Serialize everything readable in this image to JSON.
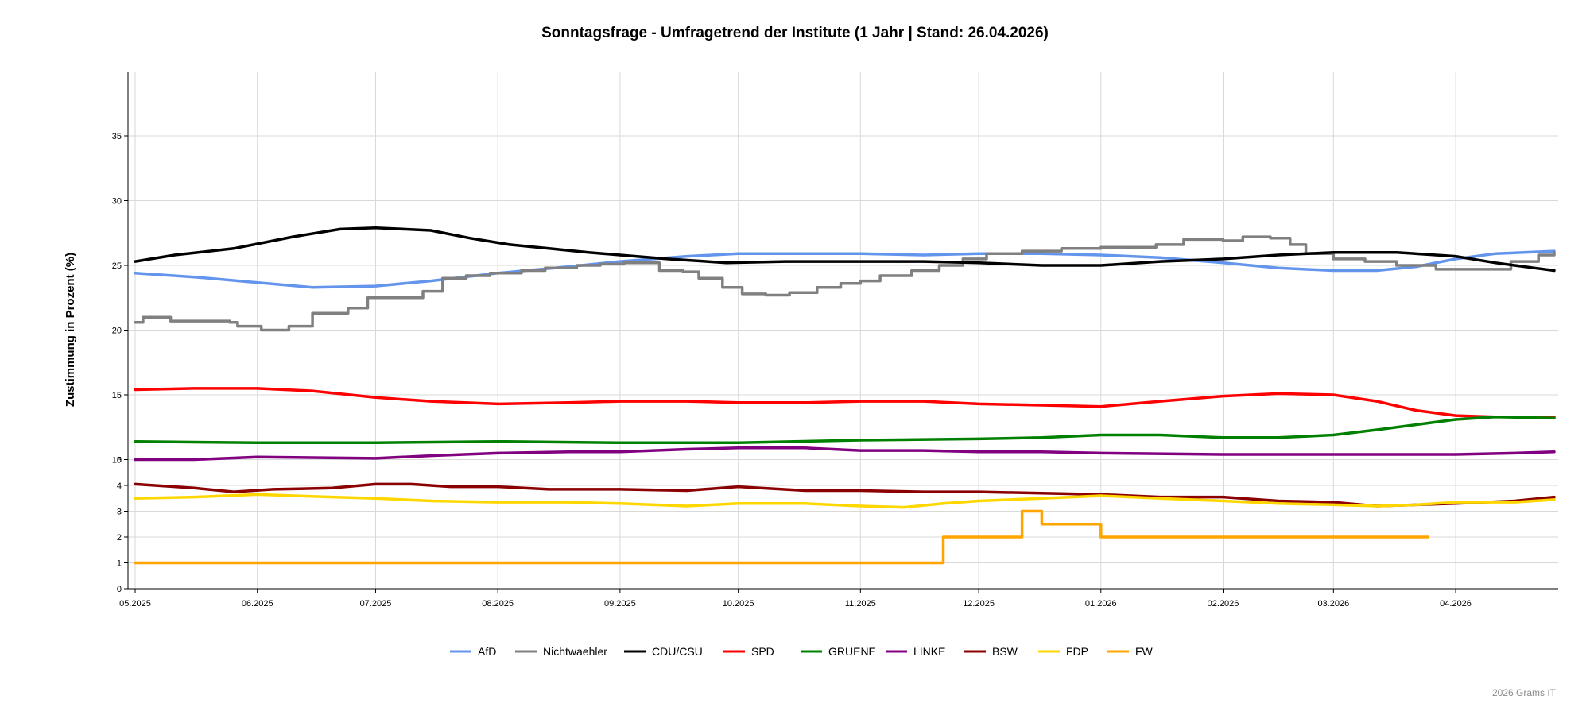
{
  "chart_data": {
    "type": "line",
    "title": "Sonntagsfrage - Umfragetrend der Institute (1 Jahr | Stand: 26.04.2026)",
    "ylabel": "Zustimmung in Prozent (%)",
    "xlabel": "",
    "credit": "2026 Grams IT",
    "x_domain": [
      0,
      360
    ],
    "yticks_upper": [
      10,
      15,
      20,
      25,
      30,
      35
    ],
    "yticks_lower": [
      0,
      1,
      2,
      3,
      4,
      5
    ],
    "ytick_labels": [
      "0",
      "1",
      "2",
      "3",
      "4",
      "5",
      "10",
      "15",
      "20",
      "25",
      "30",
      "35"
    ],
    "xticks": [
      {
        "label": "05.2025",
        "x": 0
      },
      {
        "label": "06.2025",
        "x": 31
      },
      {
        "label": "07.2025",
        "x": 61
      },
      {
        "label": "08.2025",
        "x": 92
      },
      {
        "label": "09.2025",
        "x": 123
      },
      {
        "label": "10.2025",
        "x": 153
      },
      {
        "label": "11.2025",
        "x": 184
      },
      {
        "label": "12.2025",
        "x": 214
      },
      {
        "label": "01.2026",
        "x": 245
      },
      {
        "label": "02.2026",
        "x": 276
      },
      {
        "label": "03.2026",
        "x": 304
      },
      {
        "label": "04.2026",
        "x": 335
      }
    ],
    "series": [
      {
        "name": "AfD",
        "color": "#6495ed",
        "step": false,
        "points": [
          [
            0,
            24.4
          ],
          [
            15,
            24.1
          ],
          [
            30,
            23.7
          ],
          [
            45,
            23.3
          ],
          [
            61,
            23.4
          ],
          [
            75,
            23.8
          ],
          [
            92,
            24.4
          ],
          [
            110,
            24.9
          ],
          [
            123,
            25.3
          ],
          [
            140,
            25.7
          ],
          [
            153,
            25.9
          ],
          [
            170,
            25.9
          ],
          [
            184,
            25.9
          ],
          [
            200,
            25.8
          ],
          [
            214,
            25.9
          ],
          [
            230,
            25.9
          ],
          [
            245,
            25.8
          ],
          [
            260,
            25.6
          ],
          [
            276,
            25.2
          ],
          [
            290,
            24.8
          ],
          [
            304,
            24.6
          ],
          [
            315,
            24.6
          ],
          [
            325,
            24.9
          ],
          [
            335,
            25.5
          ],
          [
            345,
            25.9
          ],
          [
            360,
            26.1
          ]
        ]
      },
      {
        "name": "Nichtwaehler",
        "color": "#808080",
        "step": true,
        "points": [
          [
            0,
            20.6
          ],
          [
            2,
            21.0
          ],
          [
            9,
            20.7
          ],
          [
            24,
            20.6
          ],
          [
            26,
            20.3
          ],
          [
            32,
            20.0
          ],
          [
            39,
            20.3
          ],
          [
            45,
            21.3
          ],
          [
            54,
            21.7
          ],
          [
            59,
            22.5
          ],
          [
            71,
            22.5
          ],
          [
            73,
            23.0
          ],
          [
            78,
            24.0
          ],
          [
            84,
            24.2
          ],
          [
            90,
            24.4
          ],
          [
            98,
            24.6
          ],
          [
            104,
            24.8
          ],
          [
            112,
            25.0
          ],
          [
            118,
            25.1
          ],
          [
            124,
            25.2
          ],
          [
            133,
            24.6
          ],
          [
            139,
            24.5
          ],
          [
            143,
            24.0
          ],
          [
            149,
            23.3
          ],
          [
            154,
            22.8
          ],
          [
            160,
            22.7
          ],
          [
            166,
            22.9
          ],
          [
            173,
            23.3
          ],
          [
            179,
            23.6
          ],
          [
            184,
            23.8
          ],
          [
            189,
            24.2
          ],
          [
            197,
            24.6
          ],
          [
            204,
            25.0
          ],
          [
            210,
            25.5
          ],
          [
            216,
            25.9
          ],
          [
            225,
            26.1
          ],
          [
            235,
            26.3
          ],
          [
            245,
            26.4
          ],
          [
            259,
            26.6
          ],
          [
            266,
            27.0
          ],
          [
            276,
            26.9
          ],
          [
            281,
            27.2
          ],
          [
            288,
            27.1
          ],
          [
            293,
            26.6
          ],
          [
            297,
            25.9
          ],
          [
            304,
            25.5
          ],
          [
            312,
            25.3
          ],
          [
            320,
            25.0
          ],
          [
            330,
            24.7
          ],
          [
            340,
            24.7
          ],
          [
            349,
            25.3
          ],
          [
            356,
            25.8
          ],
          [
            360,
            26.0
          ]
        ]
      },
      {
        "name": "CDU/CSU",
        "color": "#000000",
        "step": false,
        "points": [
          [
            0,
            25.3
          ],
          [
            10,
            25.8
          ],
          [
            25,
            26.3
          ],
          [
            40,
            27.2
          ],
          [
            52,
            27.8
          ],
          [
            61,
            27.9
          ],
          [
            75,
            27.7
          ],
          [
            85,
            27.1
          ],
          [
            95,
            26.6
          ],
          [
            105,
            26.3
          ],
          [
            115,
            26.0
          ],
          [
            123,
            25.8
          ],
          [
            135,
            25.5
          ],
          [
            150,
            25.2
          ],
          [
            165,
            25.3
          ],
          [
            184,
            25.3
          ],
          [
            200,
            25.3
          ],
          [
            214,
            25.2
          ],
          [
            230,
            25.0
          ],
          [
            245,
            25.0
          ],
          [
            260,
            25.3
          ],
          [
            276,
            25.5
          ],
          [
            290,
            25.8
          ],
          [
            304,
            26.0
          ],
          [
            320,
            26.0
          ],
          [
            335,
            25.7
          ],
          [
            345,
            25.2
          ],
          [
            355,
            24.8
          ],
          [
            360,
            24.6
          ]
        ]
      },
      {
        "name": "SPD",
        "color": "#ff0000",
        "step": false,
        "points": [
          [
            0,
            15.4
          ],
          [
            15,
            15.5
          ],
          [
            31,
            15.5
          ],
          [
            45,
            15.3
          ],
          [
            61,
            14.8
          ],
          [
            75,
            14.5
          ],
          [
            92,
            14.3
          ],
          [
            110,
            14.4
          ],
          [
            123,
            14.5
          ],
          [
            140,
            14.5
          ],
          [
            153,
            14.4
          ],
          [
            170,
            14.4
          ],
          [
            184,
            14.5
          ],
          [
            200,
            14.5
          ],
          [
            214,
            14.3
          ],
          [
            230,
            14.2
          ],
          [
            245,
            14.1
          ],
          [
            260,
            14.5
          ],
          [
            276,
            14.9
          ],
          [
            290,
            15.1
          ],
          [
            304,
            15.0
          ],
          [
            315,
            14.5
          ],
          [
            325,
            13.8
          ],
          [
            335,
            13.4
          ],
          [
            345,
            13.3
          ],
          [
            360,
            13.3
          ]
        ]
      },
      {
        "name": "GRUENE",
        "color": "#008000",
        "step": false,
        "points": [
          [
            0,
            11.4
          ],
          [
            31,
            11.3
          ],
          [
            61,
            11.3
          ],
          [
            92,
            11.4
          ],
          [
            123,
            11.3
          ],
          [
            153,
            11.3
          ],
          [
            184,
            11.5
          ],
          [
            214,
            11.6
          ],
          [
            230,
            11.7
          ],
          [
            245,
            11.9
          ],
          [
            260,
            11.9
          ],
          [
            276,
            11.7
          ],
          [
            290,
            11.7
          ],
          [
            304,
            11.9
          ],
          [
            315,
            12.3
          ],
          [
            325,
            12.7
          ],
          [
            335,
            13.1
          ],
          [
            345,
            13.3
          ],
          [
            360,
            13.2
          ]
        ]
      },
      {
        "name": "LINKE",
        "color": "#800080",
        "step": false,
        "points": [
          [
            0,
            9.9
          ],
          [
            15,
            10.0
          ],
          [
            31,
            10.2
          ],
          [
            61,
            10.1
          ],
          [
            75,
            10.3
          ],
          [
            92,
            10.5
          ],
          [
            110,
            10.6
          ],
          [
            123,
            10.6
          ],
          [
            140,
            10.8
          ],
          [
            153,
            10.9
          ],
          [
            170,
            10.9
          ],
          [
            184,
            10.7
          ],
          [
            200,
            10.7
          ],
          [
            214,
            10.6
          ],
          [
            230,
            10.6
          ],
          [
            245,
            10.5
          ],
          [
            276,
            10.4
          ],
          [
            304,
            10.4
          ],
          [
            335,
            10.4
          ],
          [
            350,
            10.5
          ],
          [
            360,
            10.6
          ]
        ]
      },
      {
        "name": "BSW",
        "color": "#8b0000",
        "step": false,
        "points": [
          [
            0,
            4.05
          ],
          [
            15,
            3.9
          ],
          [
            25,
            3.75
          ],
          [
            35,
            3.85
          ],
          [
            50,
            3.9
          ],
          [
            61,
            4.05
          ],
          [
            70,
            4.05
          ],
          [
            80,
            3.95
          ],
          [
            92,
            3.95
          ],
          [
            105,
            3.85
          ],
          [
            123,
            3.85
          ],
          [
            140,
            3.8
          ],
          [
            153,
            3.95
          ],
          [
            170,
            3.8
          ],
          [
            184,
            3.8
          ],
          [
            200,
            3.75
          ],
          [
            214,
            3.75
          ],
          [
            230,
            3.7
          ],
          [
            245,
            3.65
          ],
          [
            260,
            3.55
          ],
          [
            276,
            3.55
          ],
          [
            290,
            3.4
          ],
          [
            304,
            3.35
          ],
          [
            315,
            3.2
          ],
          [
            325,
            3.25
          ],
          [
            335,
            3.3
          ],
          [
            350,
            3.4
          ],
          [
            360,
            3.55
          ]
        ]
      },
      {
        "name": "FDP",
        "color": "#ffd700",
        "step": false,
        "points": [
          [
            0,
            3.5
          ],
          [
            15,
            3.55
          ],
          [
            31,
            3.65
          ],
          [
            50,
            3.55
          ],
          [
            61,
            3.5
          ],
          [
            75,
            3.4
          ],
          [
            92,
            3.35
          ],
          [
            110,
            3.35
          ],
          [
            123,
            3.3
          ],
          [
            140,
            3.2
          ],
          [
            153,
            3.3
          ],
          [
            170,
            3.3
          ],
          [
            184,
            3.2
          ],
          [
            195,
            3.15
          ],
          [
            205,
            3.3
          ],
          [
            214,
            3.4
          ],
          [
            230,
            3.5
          ],
          [
            245,
            3.6
          ],
          [
            260,
            3.5
          ],
          [
            276,
            3.4
          ],
          [
            290,
            3.3
          ],
          [
            304,
            3.25
          ],
          [
            315,
            3.2
          ],
          [
            325,
            3.25
          ],
          [
            335,
            3.35
          ],
          [
            350,
            3.35
          ],
          [
            360,
            3.45
          ]
        ]
      },
      {
        "name": "FW",
        "color": "#ffa500",
        "step": true,
        "points": [
          [
            0,
            1.0
          ],
          [
            203,
            1.0
          ],
          [
            205,
            2.0
          ],
          [
            223,
            2.0
          ],
          [
            225,
            3.0
          ],
          [
            229,
            3.0
          ],
          [
            230,
            2.5
          ],
          [
            244,
            2.5
          ],
          [
            245,
            2.0
          ],
          [
            328,
            2.0
          ]
        ]
      }
    ]
  }
}
